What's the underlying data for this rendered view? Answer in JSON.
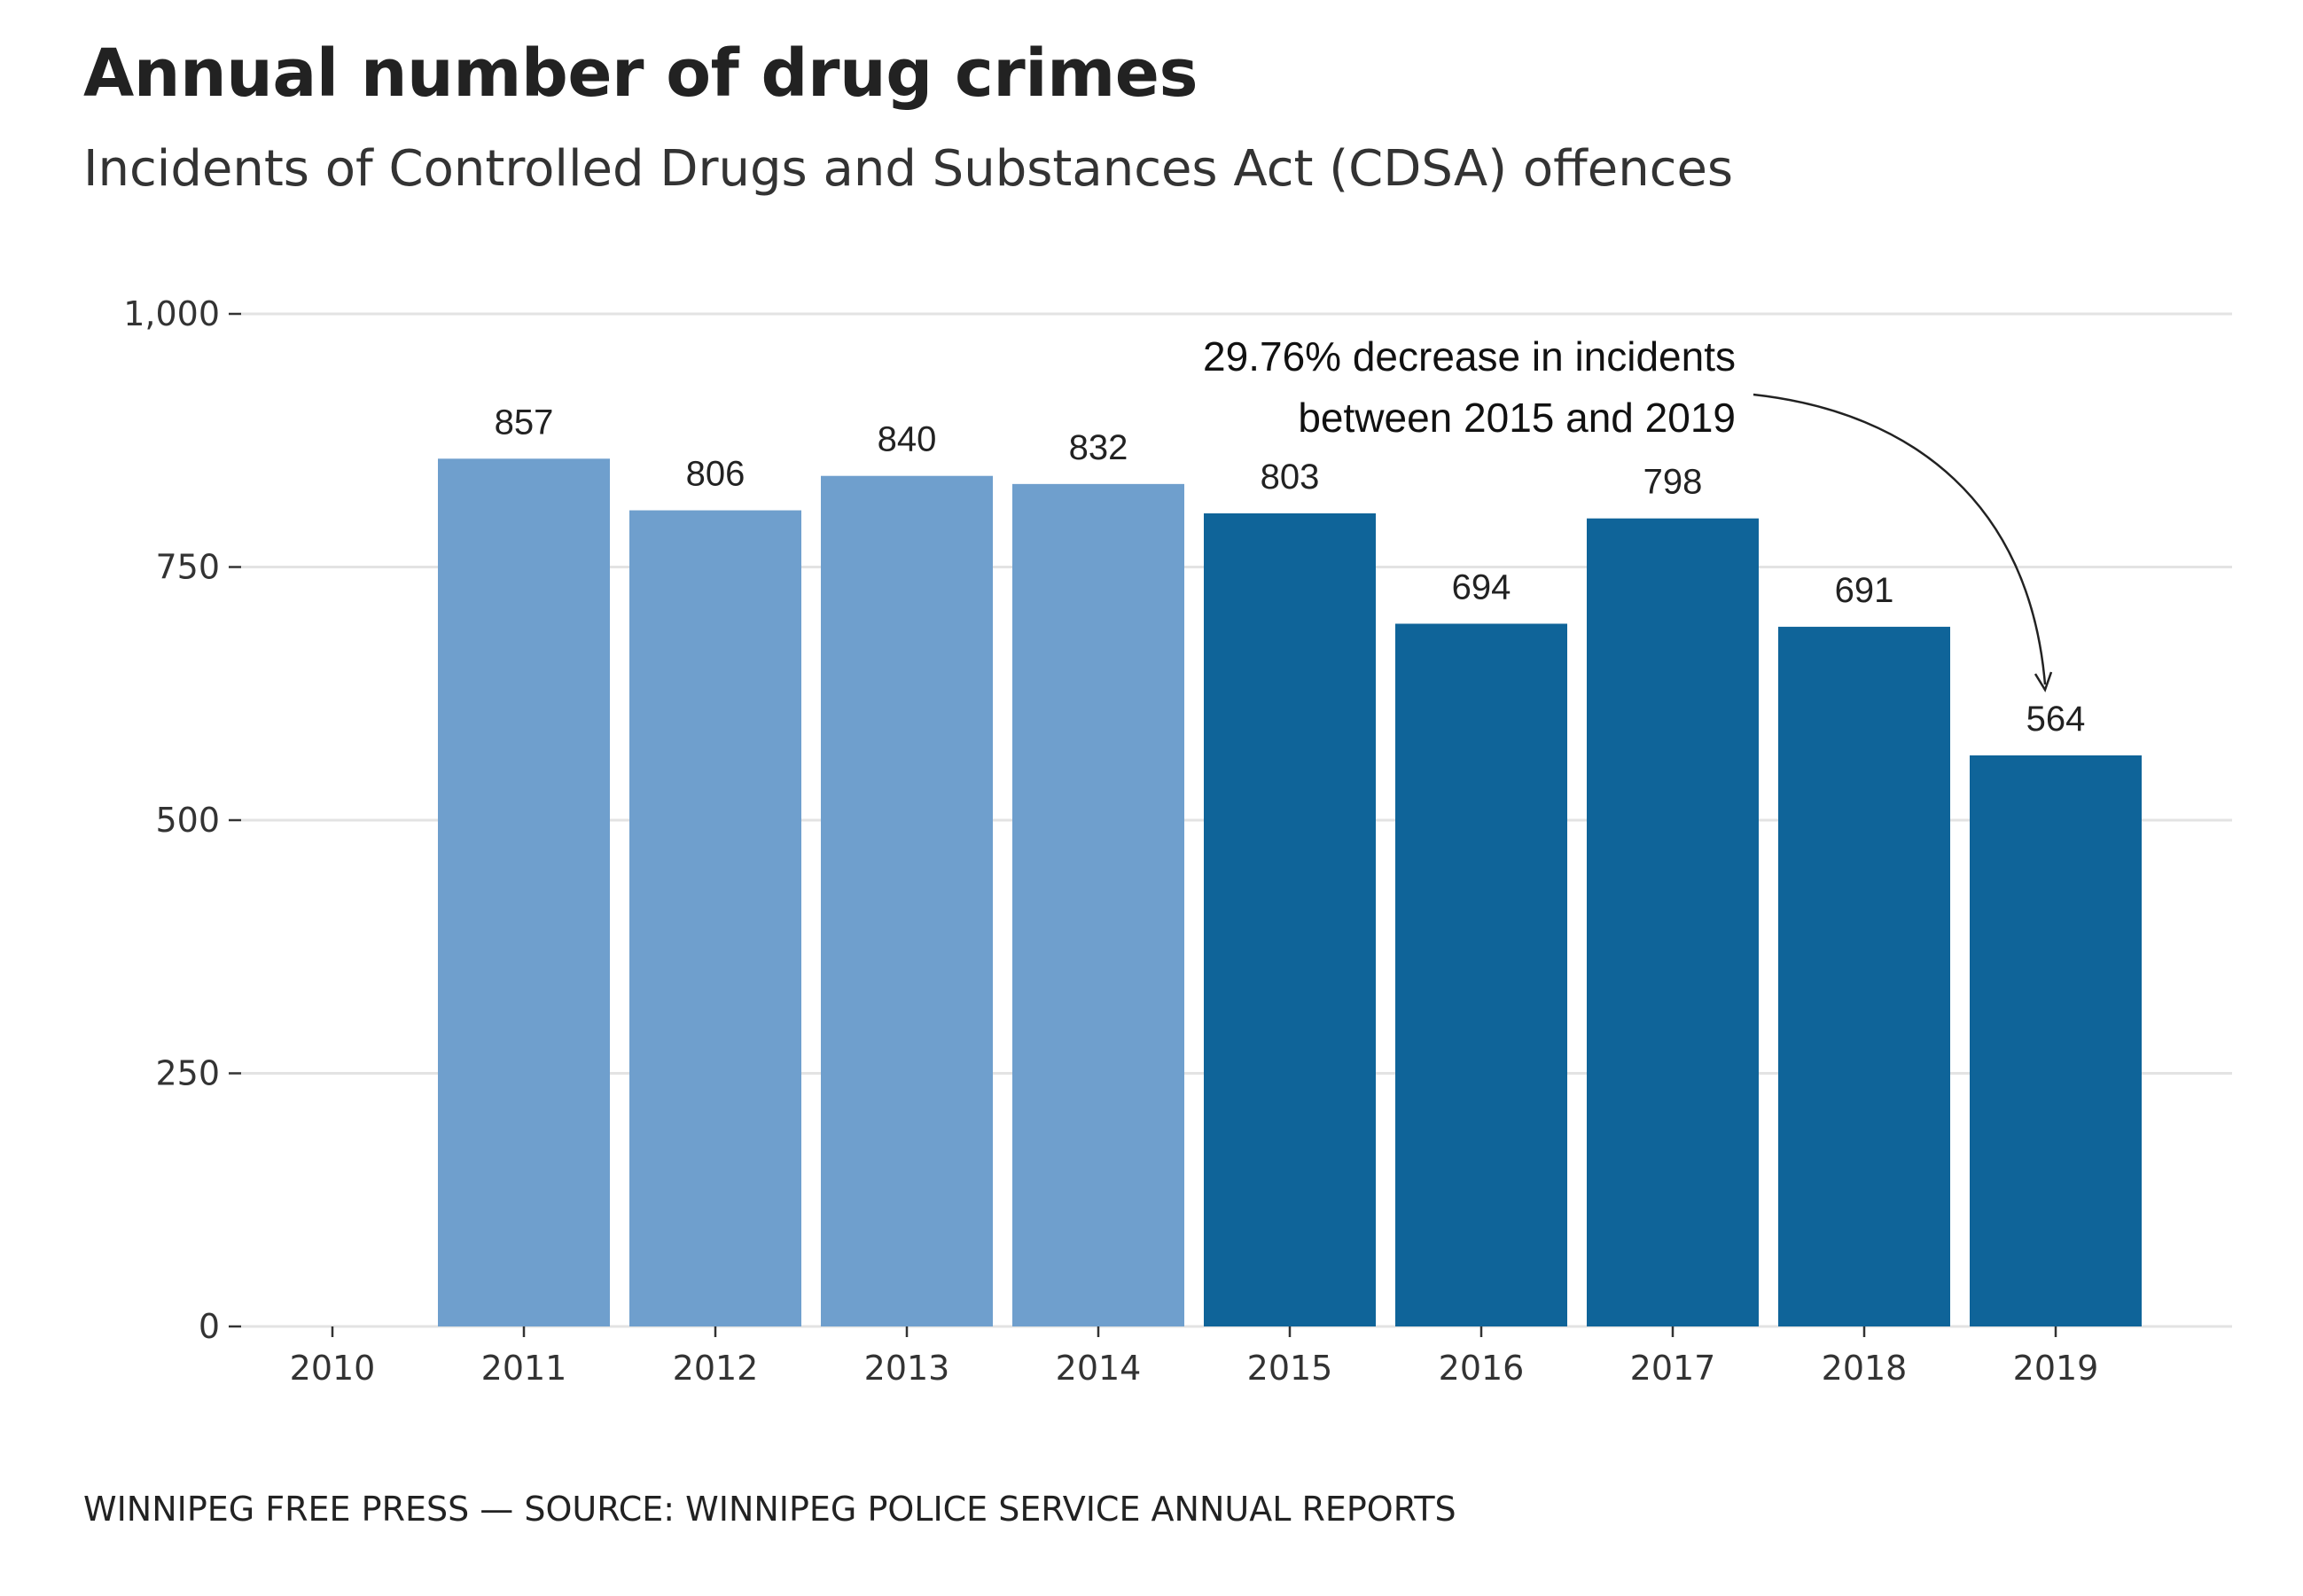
{
  "chart_data": {
    "type": "bar",
    "title": "Annual number of drug crimes",
    "subtitle": "Incidents of Controlled Drugs and Substances Act (CDSA) offences",
    "categories": [
      "2010",
      "2011",
      "2012",
      "2013",
      "2014",
      "2015",
      "2016",
      "2017",
      "2018",
      "2019"
    ],
    "values": [
      null,
      857,
      806,
      840,
      832,
      803,
      694,
      798,
      691,
      564
    ],
    "value_labels": [
      "",
      "857",
      "806",
      "840",
      "832",
      "803",
      "694",
      "798",
      "691",
      "564"
    ],
    "bar_colors": [
      "#6f9fcd",
      "#6f9fcd",
      "#6f9fcd",
      "#6f9fcd",
      "#6f9fcd",
      "#0f6499",
      "#0f6499",
      "#0f6499",
      "#0f6499",
      "#0f6499"
    ],
    "ylim": [
      0,
      1000
    ],
    "yticks": [
      0,
      250,
      500,
      750,
      1000
    ],
    "ytick_labels": [
      "0",
      "250",
      "500",
      "750",
      "1,000"
    ],
    "grid": true,
    "xlabel": "",
    "ylabel": "",
    "annotation": {
      "lines": [
        "29.76% decrease in incidents",
        "between 2015 and 2019"
      ],
      "points_to": "2019"
    }
  },
  "footer": "WINNIPEG FREE PRESS — SOURCE: WINNIPEG POLICE SERVICE ANNUAL REPORTS"
}
